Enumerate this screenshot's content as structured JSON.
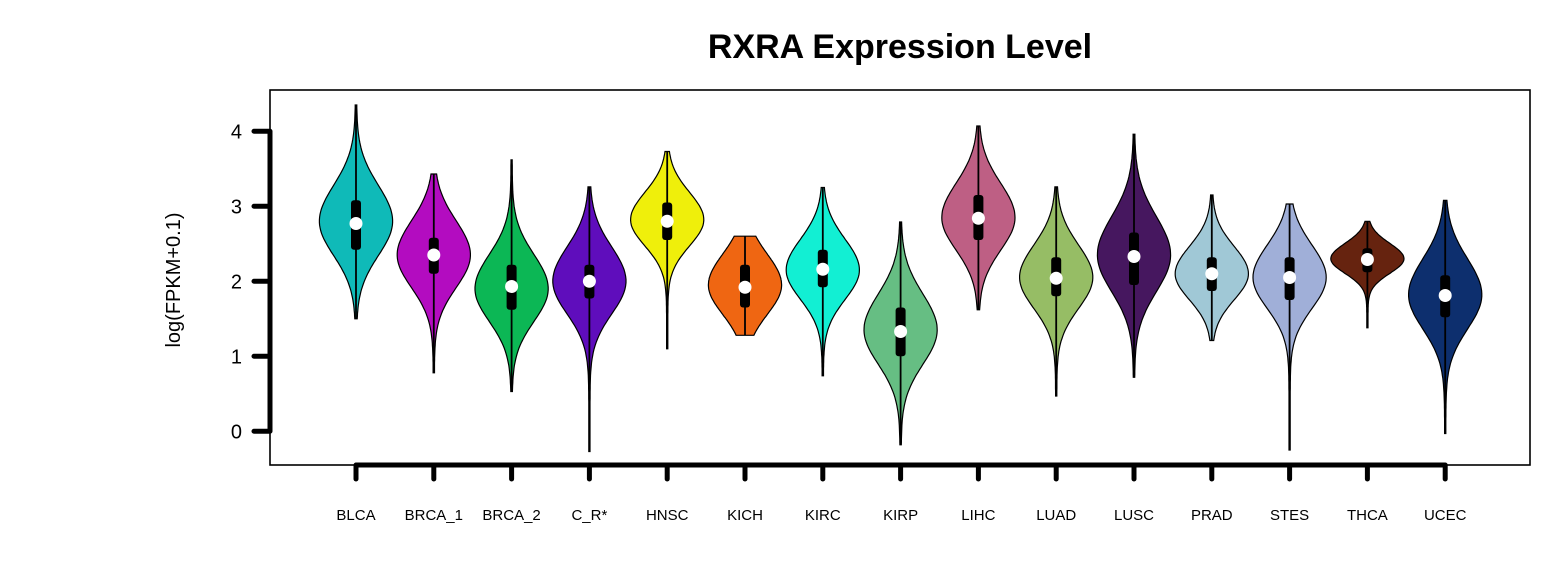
{
  "chart_data": {
    "type": "violin",
    "title": "RXRA Expression Level",
    "ylabel": "log(FPKM+0.1)",
    "xlabel": "",
    "ylim": [
      -0.45,
      4.55
    ],
    "yticks": [
      0,
      1,
      2,
      3,
      4
    ],
    "grid": false,
    "legend": "none",
    "categories": [
      "BLCA",
      "BRCA_1",
      "BRCA_2",
      "C_R*",
      "HNSC",
      "KICH",
      "KIRC",
      "KIRP",
      "LIHC",
      "LUAD",
      "LUSC",
      "PRAD",
      "STES",
      "THCA",
      "UCEC"
    ],
    "series": [
      {
        "category": "BLCA",
        "color": "#0FBAB8",
        "min": 1.5,
        "max": 4.35,
        "q1": 2.42,
        "median": 2.77,
        "q3": 3.08,
        "mode": 2.8,
        "spread": 0.42
      },
      {
        "category": "BRCA_1",
        "color": "#B30CC0",
        "min": 0.78,
        "max": 3.43,
        "q1": 2.1,
        "median": 2.35,
        "q3": 2.58,
        "mode": 2.35,
        "spread": 0.4
      },
      {
        "category": "BRCA_2",
        "color": "#0CB755",
        "min": 0.53,
        "max": 3.62,
        "q1": 1.62,
        "median": 1.93,
        "q3": 2.22,
        "mode": 1.9,
        "spread": 0.4
      },
      {
        "category": "C_R*",
        "color": "#5F0DBC",
        "min": -0.27,
        "max": 3.26,
        "q1": 1.77,
        "median": 2.0,
        "q3": 2.22,
        "mode": 2.0,
        "spread": 0.4
      },
      {
        "category": "HNSC",
        "color": "#EFEF0B",
        "min": 1.1,
        "max": 3.73,
        "q1": 2.55,
        "median": 2.8,
        "q3": 3.05,
        "mode": 2.82,
        "spread": 0.32
      },
      {
        "category": "KICH",
        "color": "#EF6612",
        "min": 1.28,
        "max": 2.6,
        "q1": 1.65,
        "median": 1.92,
        "q3": 2.22,
        "mode": 1.95,
        "spread": 0.36
      },
      {
        "category": "KIRC",
        "color": "#12EFD3",
        "min": 0.74,
        "max": 3.25,
        "q1": 1.92,
        "median": 2.16,
        "q3": 2.42,
        "mode": 2.15,
        "spread": 0.36
      },
      {
        "category": "KIRP",
        "color": "#66BE83",
        "min": -0.18,
        "max": 2.79,
        "q1": 1.0,
        "median": 1.33,
        "q3": 1.65,
        "mode": 1.35,
        "spread": 0.42
      },
      {
        "category": "LIHC",
        "color": "#BE5F84",
        "min": 1.62,
        "max": 4.07,
        "q1": 2.55,
        "median": 2.84,
        "q3": 3.15,
        "mode": 2.85,
        "spread": 0.4
      },
      {
        "category": "LUAD",
        "color": "#96BD65",
        "min": 0.47,
        "max": 3.26,
        "q1": 1.8,
        "median": 2.04,
        "q3": 2.32,
        "mode": 2.05,
        "spread": 0.38
      },
      {
        "category": "LUSC",
        "color": "#46175F",
        "min": 0.72,
        "max": 3.96,
        "q1": 1.95,
        "median": 2.33,
        "q3": 2.65,
        "mode": 2.35,
        "spread": 0.45
      },
      {
        "category": "PRAD",
        "color": "#A0C8D6",
        "min": 1.21,
        "max": 3.15,
        "q1": 1.87,
        "median": 2.1,
        "q3": 2.32,
        "mode": 2.1,
        "spread": 0.32
      },
      {
        "category": "STES",
        "color": "#A0AFD8",
        "min": -0.25,
        "max": 3.03,
        "q1": 1.75,
        "median": 2.05,
        "q3": 2.32,
        "mode": 2.05,
        "spread": 0.38
      },
      {
        "category": "THCA",
        "color": "#66230F",
        "min": 1.38,
        "max": 2.8,
        "q1": 2.12,
        "median": 2.29,
        "q3": 2.44,
        "mode": 2.3,
        "spread": 0.18
      },
      {
        "category": "UCEC",
        "color": "#0D2F6E",
        "min": -0.03,
        "max": 3.08,
        "q1": 1.52,
        "median": 1.81,
        "q3": 2.08,
        "mode": 1.82,
        "spread": 0.42
      }
    ]
  }
}
